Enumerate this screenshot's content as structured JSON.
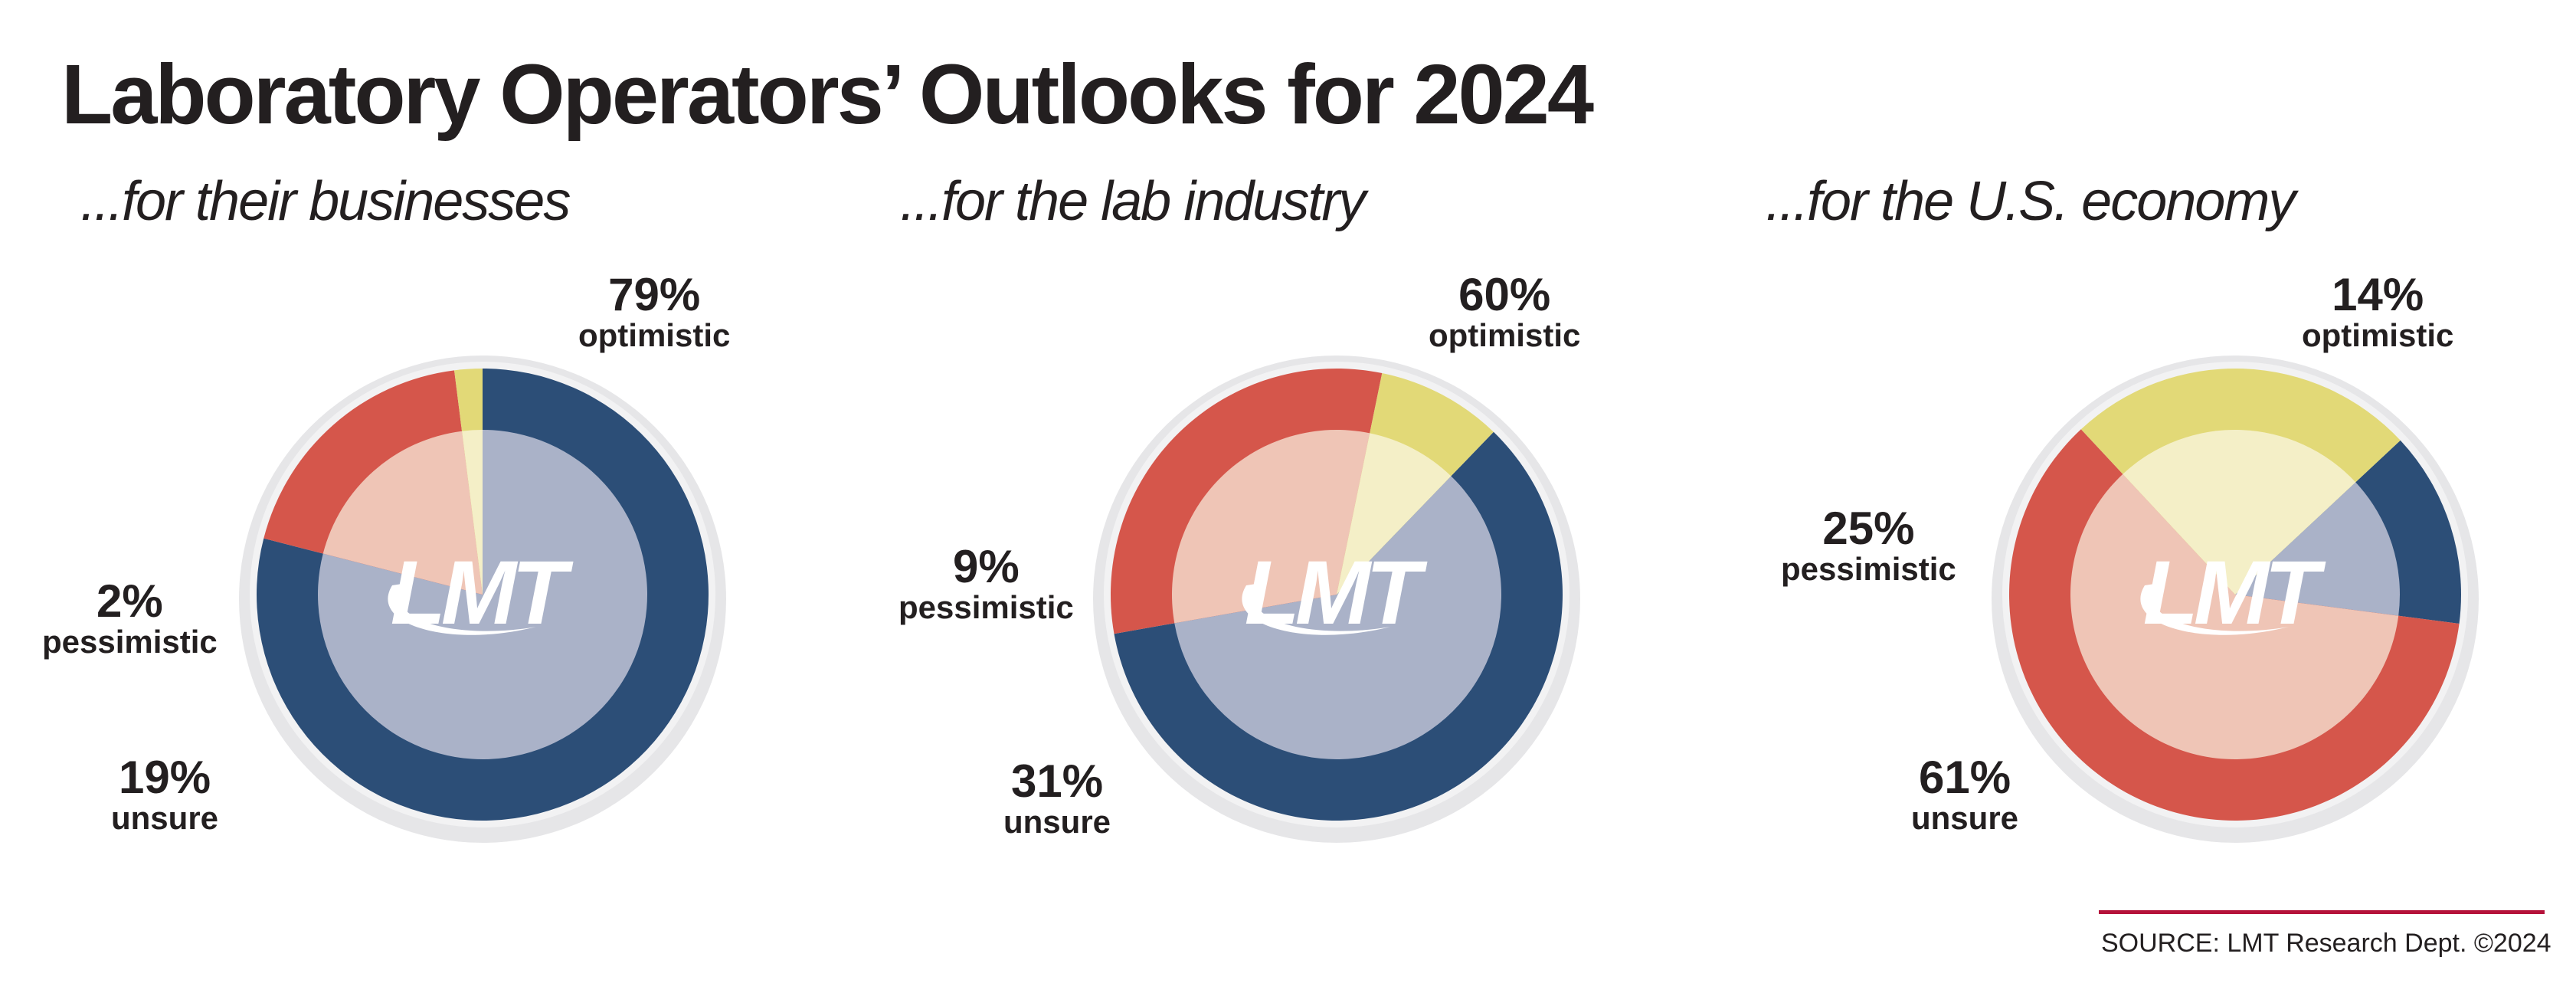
{
  "title": "Laboratory Operators’ Outlooks for 2024",
  "source": "SOURCE: LMT Research Dept. ©2024",
  "logo_text": "LMT",
  "colors": {
    "optimistic": "#2c4e77",
    "unsure": "#d5564b",
    "pessimistic": "#e2d977",
    "optimistic_inner": "#aab2c8",
    "unsure_inner": "#efc5b6",
    "pessimistic_inner": "#f4efc7",
    "source_rule": "#b5123a",
    "ring_shadow": "#e6e6e8"
  },
  "chart_data": [
    {
      "type": "pie",
      "title": "...for their businesses",
      "series": [
        {
          "name": "optimistic",
          "value": 79,
          "label": "79%"
        },
        {
          "name": "unsure",
          "value": 19,
          "label": "19%"
        },
        {
          "name": "pessimistic",
          "value": 2,
          "label": "2%"
        }
      ]
    },
    {
      "type": "pie",
      "title": "...for the lab industry",
      "series": [
        {
          "name": "optimistic",
          "value": 60,
          "label": "60%"
        },
        {
          "name": "unsure",
          "value": 31,
          "label": "31%"
        },
        {
          "name": "pessimistic",
          "value": 9,
          "label": "9%"
        }
      ]
    },
    {
      "type": "pie",
      "title": "...for the U.S. economy",
      "series": [
        {
          "name": "optimistic",
          "value": 14,
          "label": "14%"
        },
        {
          "name": "unsure",
          "value": 61,
          "label": "61%"
        },
        {
          "name": "pessimistic",
          "value": 25,
          "label": "25%"
        }
      ]
    }
  ]
}
